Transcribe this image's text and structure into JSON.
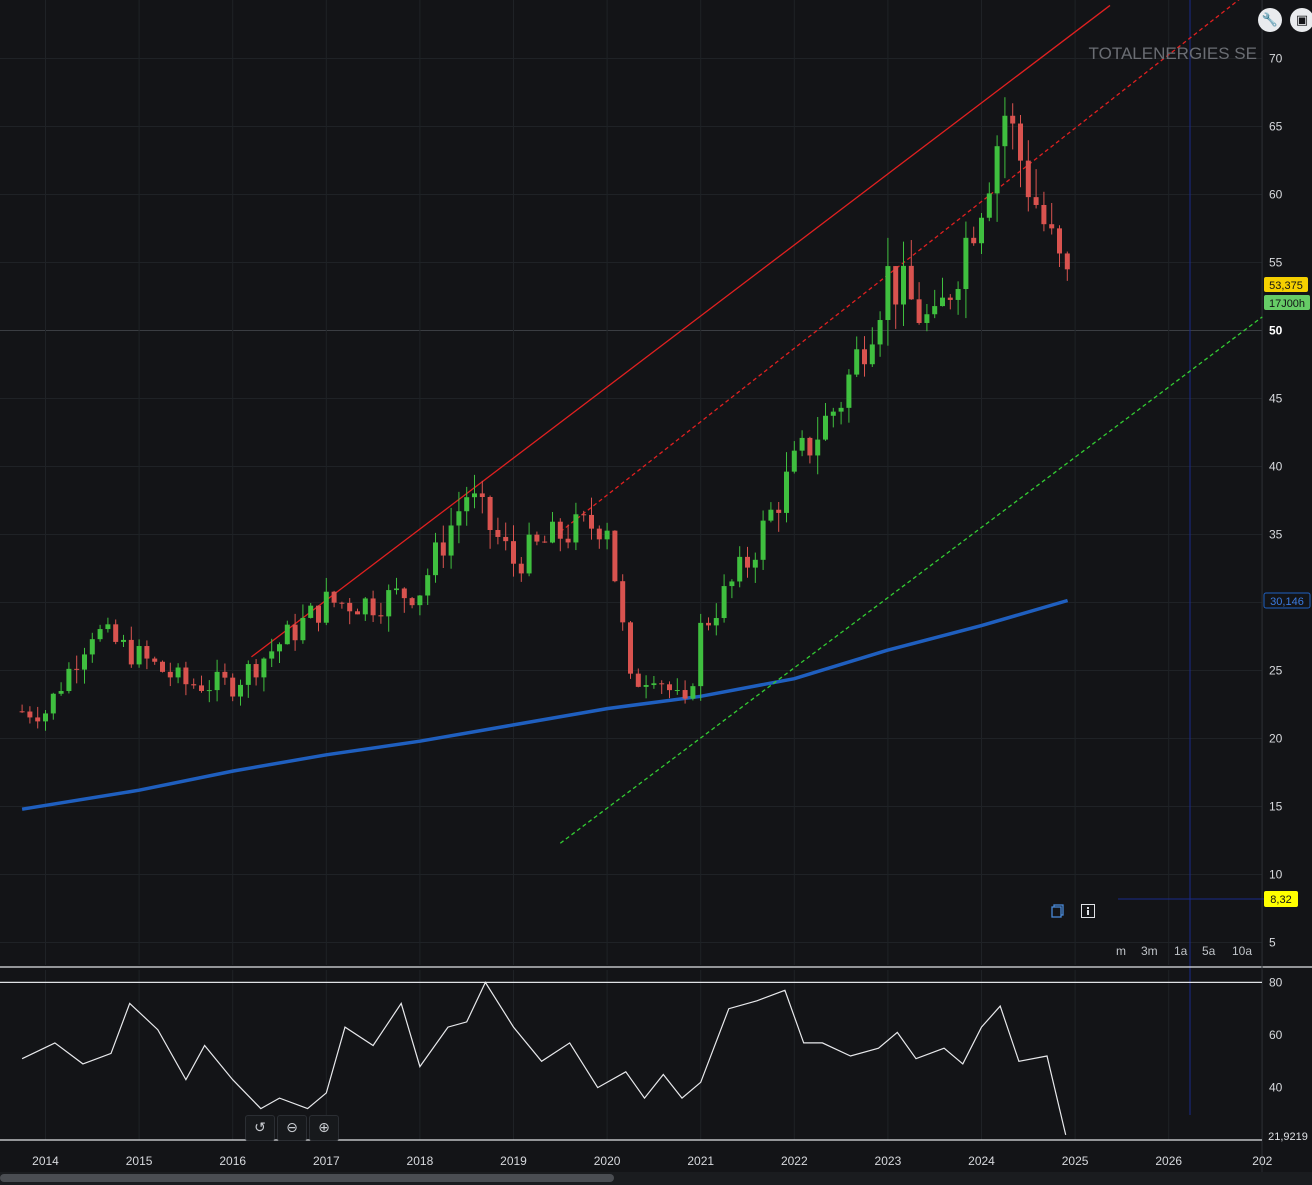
{
  "instrument": {
    "name": "TOTALENERGIES SE"
  },
  "toolbar": {
    "settings_icon": "wrench-icon",
    "fullscreen_icon": "window-icon"
  },
  "periods": [
    "m",
    "3m",
    "1a",
    "5a",
    "10a"
  ],
  "price_axis": {
    "ticks": [
      "70",
      "65",
      "60",
      "55",
      "50",
      "45",
      "40",
      "35",
      "30",
      "25",
      "20",
      "15",
      "10",
      "5"
    ],
    "bold_tick": "50"
  },
  "rsi_axis": {
    "ticks": [
      "80",
      "60",
      "40"
    ]
  },
  "time_axis": {
    "ticks": [
      "2014",
      "2015",
      "2016",
      "2017",
      "2018",
      "2019",
      "2020",
      "2021",
      "2022",
      "2023",
      "2024",
      "2025",
      "2026",
      "202"
    ]
  },
  "labels": {
    "last_price": "53,375",
    "last_time": "17J00h",
    "ma_value": "30,146",
    "marker_value": "8,32",
    "rsi_value": "21,9219"
  },
  "colors": {
    "background": "#131417",
    "up": "#3fbf3f",
    "down": "#d9534f",
    "ma": "#1f5fbf",
    "trend_red": "#e02020",
    "trend_green": "#33cc33",
    "last_price_bg": "#f5d000",
    "last_time_bg": "#66cc66",
    "marker_bg": "#ffff00"
  },
  "chart_data": {
    "type": "candlestick",
    "interval": "monthly",
    "xlim": [
      2013.75,
      2027.0
    ],
    "ylim": [
      3,
      74
    ],
    "title": "TOTALENERGIES SE",
    "candles_yearly_close_approx": {
      "x": [
        2014.0,
        2014.5,
        2015.0,
        2015.5,
        2016.0,
        2016.5,
        2017.0,
        2017.5,
        2018.0,
        2018.5,
        2019.0,
        2019.5,
        2020.0,
        2020.25,
        2020.5,
        2020.85,
        2021.0,
        2021.5,
        2022.0,
        2022.5,
        2023.0,
        2023.5,
        2024.0,
        2024.25,
        2024.5,
        2024.9
      ],
      "close": [
        22,
        28,
        26,
        24,
        24,
        27,
        30,
        30,
        31,
        38,
        33,
        35,
        36,
        24,
        25,
        22,
        28,
        33,
        40,
        45,
        54,
        50,
        60,
        66,
        61,
        53.4
      ]
    },
    "series": [
      {
        "name": "MA",
        "x": [
          2013.75,
          2015.0,
          2016.0,
          2017.0,
          2018.0,
          2019.0,
          2020.0,
          2021.0,
          2022.0,
          2023.0,
          2024.0,
          2024.92
        ],
        "values": [
          14.8,
          16.2,
          17.6,
          18.8,
          19.8,
          21.0,
          22.2,
          23.1,
          24.4,
          26.5,
          28.3,
          30.146
        ]
      }
    ],
    "trendlines": [
      {
        "style": "solid",
        "color": "#e02020",
        "points": [
          [
            2016.2,
            26.0
          ],
          [
            2024.3,
            68.3
          ]
        ]
      },
      {
        "style": "dashed",
        "color": "#e02020",
        "points": [
          [
            2019.5,
            35.2
          ],
          [
            2024.8,
            63.8
          ]
        ]
      },
      {
        "style": "dashed",
        "color": "#33cc33",
        "points": [
          [
            2019.5,
            12.3
          ],
          [
            2027.0,
            51.0
          ]
        ]
      }
    ],
    "rsi": {
      "ylim": [
        20,
        82
      ],
      "x": [
        2013.75,
        2014.1,
        2014.4,
        2014.7,
        2014.9,
        2015.2,
        2015.5,
        2015.7,
        2016.0,
        2016.3,
        2016.5,
        2016.8,
        2017.0,
        2017.2,
        2017.5,
        2017.8,
        2018.0,
        2018.3,
        2018.5,
        2018.7,
        2019.0,
        2019.3,
        2019.6,
        2019.9,
        2020.2,
        2020.4,
        2020.6,
        2020.8,
        2021.0,
        2021.3,
        2021.6,
        2021.9,
        2022.1,
        2022.3,
        2022.6,
        2022.9,
        2023.1,
        2023.3,
        2023.6,
        2023.8,
        2024.0,
        2024.2,
        2024.4,
        2024.7,
        2024.9
      ],
      "values": [
        51,
        57,
        49,
        53,
        72,
        62,
        43,
        56,
        43,
        32,
        36,
        32,
        38,
        63,
        56,
        72,
        48,
        63,
        65,
        80,
        63,
        50,
        57,
        40,
        46,
        36,
        45,
        36,
        42,
        70,
        73,
        77,
        57,
        57,
        52,
        55,
        61,
        51,
        55,
        49,
        63,
        71,
        50,
        52,
        22
      ]
    }
  }
}
